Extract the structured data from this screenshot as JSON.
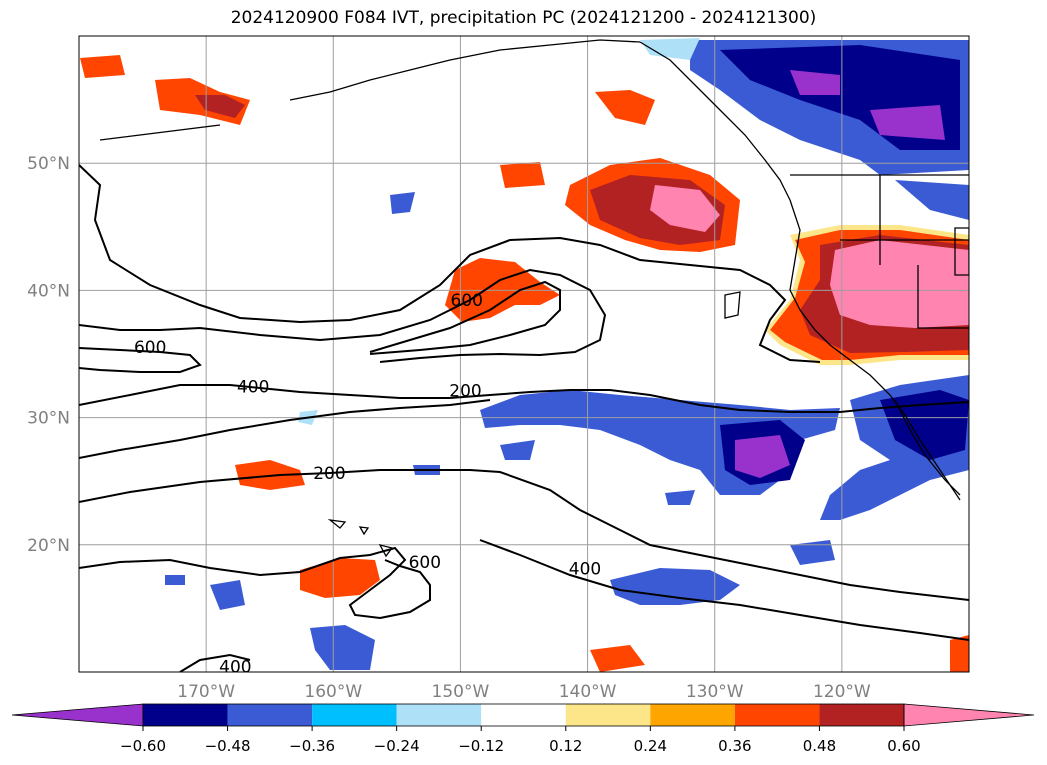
{
  "title": "2024120900 F084 IVT, precipitation PC (2024121200 - 2024121300)",
  "axes": {
    "lon_ticks": [
      {
        "lon": -170,
        "label": "170°W"
      },
      {
        "lon": -160,
        "label": "160°W"
      },
      {
        "lon": -150,
        "label": "150°W"
      },
      {
        "lon": -140,
        "label": "140°W"
      },
      {
        "lon": -130,
        "label": "130°W"
      },
      {
        "lon": -120,
        "label": "120°W"
      }
    ],
    "lat_ticks": [
      {
        "lat": 50,
        "label": "50°N"
      },
      {
        "lat": 40,
        "label": "40°N"
      },
      {
        "lat": 30,
        "label": "30°N"
      },
      {
        "lat": 20,
        "label": "20°N"
      }
    ],
    "lon_range": [
      -180,
      -110
    ],
    "lat_range": [
      10,
      60
    ],
    "grid": true
  },
  "ivt_contour_labels": [
    {
      "text": "600",
      "lon": -174.4,
      "lat": 35.3
    },
    {
      "text": "400",
      "lon": -166.3,
      "lat": 32.2
    },
    {
      "text": "200",
      "lon": -149.6,
      "lat": 31.9
    },
    {
      "text": "600",
      "lon": -149.5,
      "lat": 39.0
    },
    {
      "text": "200",
      "lon": -160.3,
      "lat": 25.4
    },
    {
      "text": "600",
      "lon": -152.8,
      "lat": 18.4
    },
    {
      "text": "400",
      "lon": -140.2,
      "lat": 17.9
    },
    {
      "text": "400",
      "lon": -167.7,
      "lat": 10.2
    }
  ],
  "colorbar": {
    "colors": [
      "#9932cc",
      "#00008b",
      "#3a5bd4",
      "#00bfff",
      "#aee0f8",
      "#ffffff",
      "#fde68a",
      "#ffa500",
      "#ff4500",
      "#b22222",
      "#ff85b0"
    ],
    "tick_labels": [
      "−0.60",
      "−0.48",
      "−0.36",
      "−0.24",
      "−0.12",
      "0.12",
      "0.24",
      "0.36",
      "0.48",
      "0.60"
    ],
    "extend": "both"
  }
}
